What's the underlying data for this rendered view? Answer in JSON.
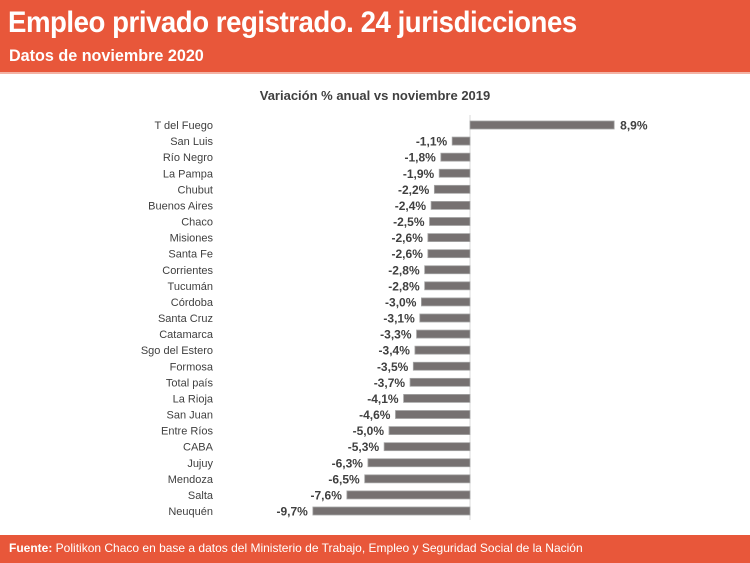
{
  "header": {
    "title": "Empleo privado registrado. 24 jurisdicciones",
    "subtitle": "Datos de noviembre 2020"
  },
  "footer": {
    "label": "Fuente:",
    "text": " Politikon Chaco en base a datos del Ministerio de Trabajo, Empleo y Seguridad Social de la Nación"
  },
  "colors": {
    "header": "#E8573A",
    "bar": "#767171"
  },
  "chart_data": {
    "type": "bar",
    "orientation": "horizontal",
    "title": "Variación % anual vs noviembre 2019",
    "categories": [
      "T del Fuego",
      "San Luis",
      "Río Negro",
      "La Pampa",
      "Chubut",
      "Buenos Aires",
      "Chaco",
      "Misiones",
      "Santa Fe",
      "Corrientes",
      "Tucumán",
      "Córdoba",
      "Santa Cruz",
      "Catamarca",
      "Sgo del Estero",
      "Formosa",
      "Total país",
      "La Rioja",
      "San Juan",
      "Entre Ríos",
      "CABA",
      "Jujuy",
      "Mendoza",
      "Salta",
      "Neuquén"
    ],
    "values": [
      8.9,
      -1.1,
      -1.8,
      -1.9,
      -2.2,
      -2.4,
      -2.5,
      -2.6,
      -2.6,
      -2.8,
      -2.8,
      -3.0,
      -3.1,
      -3.3,
      -3.4,
      -3.5,
      -3.7,
      -4.1,
      -4.6,
      -5.0,
      -5.3,
      -6.3,
      -6.5,
      -7.6,
      -9.7
    ],
    "data_labels": [
      "8,9%",
      "-1,1%",
      "-1,8%",
      "-1,9%",
      "-2,2%",
      "-2,4%",
      "-2,5%",
      "-2,6%",
      "-2,6%",
      "-2,8%",
      "-2,8%",
      "-3,0%",
      "-3,1%",
      "-3,3%",
      "-3,4%",
      "-3,5%",
      "-3,7%",
      "-4,1%",
      "-4,6%",
      "-5,0%",
      "-5,3%",
      "-6,3%",
      "-6,5%",
      "-7,6%",
      "-9,7%"
    ],
    "grid": false
  }
}
